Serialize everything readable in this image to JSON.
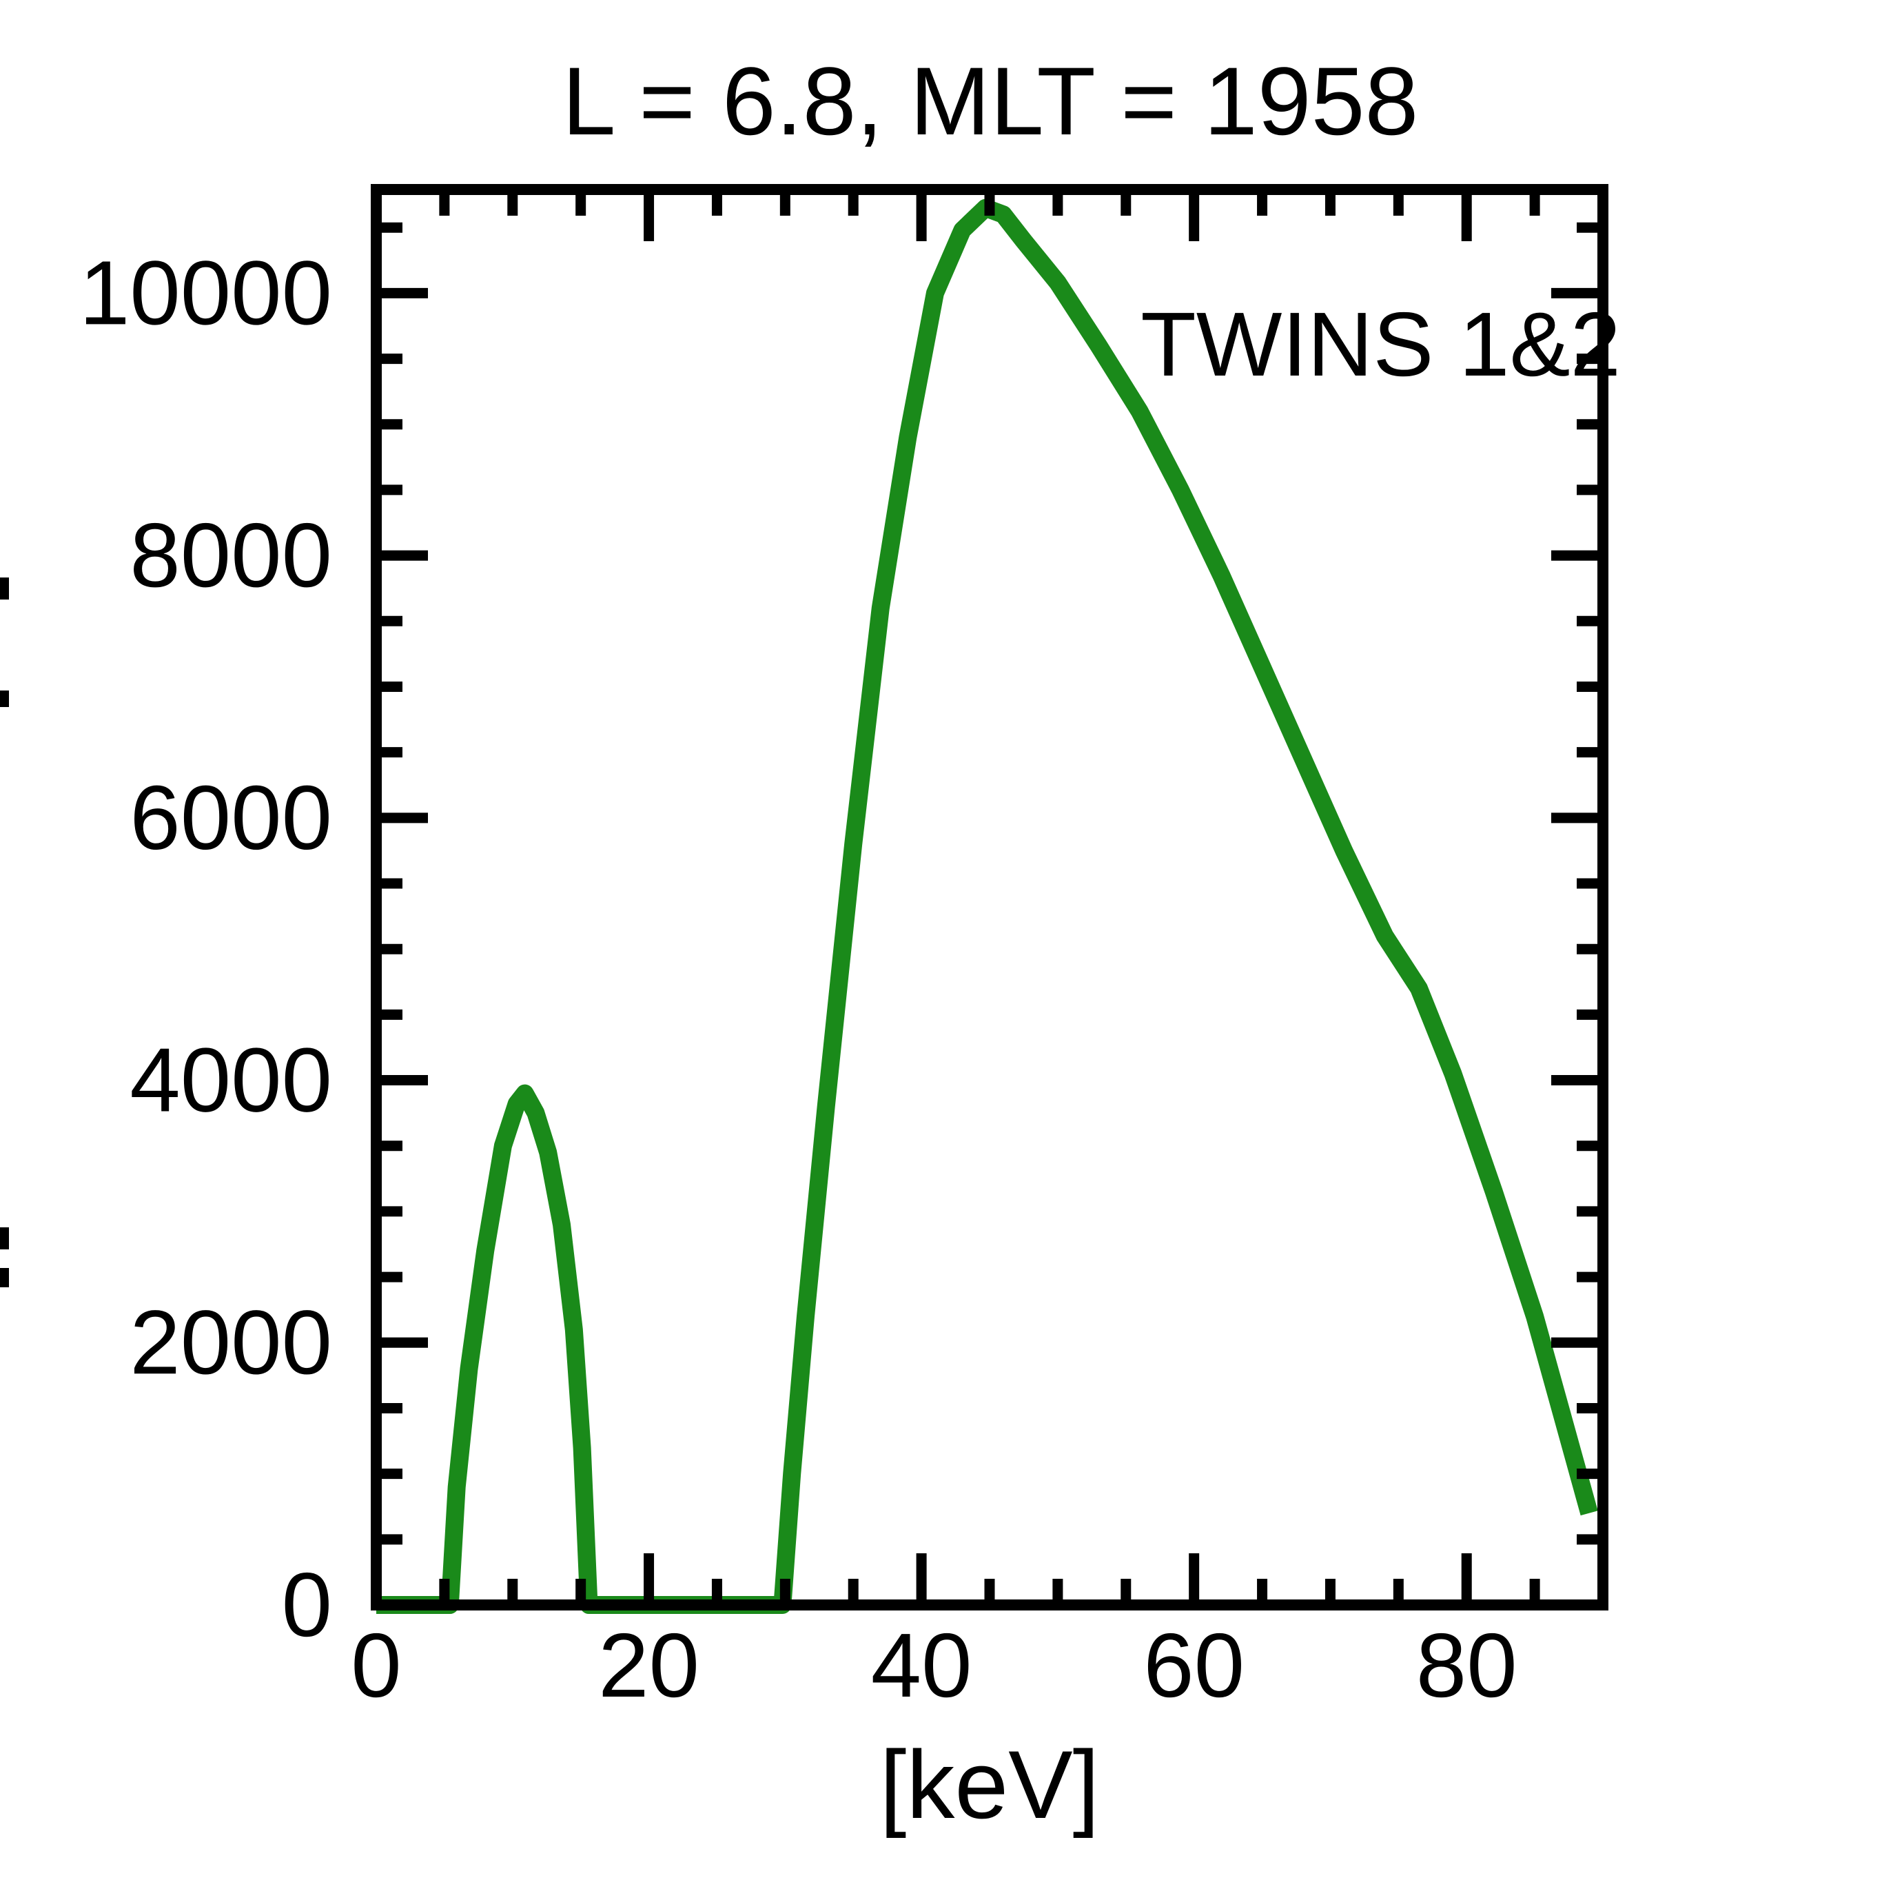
{
  "page": {
    "background": "#ffffff"
  },
  "chart_data": {
    "type": "line",
    "title": "L =  6.8, MLT = 1958",
    "xlabel": "[keV]",
    "ylabel": "",
    "ylabel_clipped": true,
    "xlim": [
      0,
      90
    ],
    "ylim": [
      0,
      10790
    ],
    "grid": false,
    "axis_color": "#000000",
    "x_tick_values": [
      0,
      20,
      40,
      60,
      80
    ],
    "x_tick_labels": [
      "0",
      "20",
      "40",
      "60",
      "80"
    ],
    "x_minor_step": 5,
    "y_tick_values": [
      0,
      2000,
      4000,
      6000,
      8000,
      10000
    ],
    "y_tick_labels": [
      "0",
      "2000",
      "4000",
      "6000",
      "8000",
      "10000"
    ],
    "y_minor_step": 500,
    "legend": {
      "text": "TWINS 1&2",
      "position": "upper-right-inside",
      "color": "#1a8a1a"
    },
    "ylabel_clip_marks": [
      [
        838,
        32
      ],
      [
        1002,
        24
      ],
      [
        1781,
        32
      ],
      [
        1840,
        28
      ]
    ],
    "series": [
      {
        "name": "TWINS 1&2",
        "color": "#1a8a1a",
        "line_width": 26,
        "x": [
          0,
          5.4,
          5.9,
          6.8,
          8.0,
          9.3,
          10.3,
          10.9,
          11.7,
          12.6,
          13.6,
          14.5,
          15.1,
          15.6,
          29.8,
          30.5,
          31.5,
          33,
          35,
          37,
          39,
          41,
          43,
          44.7,
          46,
          47.5,
          50,
          53,
          56,
          59,
          62,
          65,
          68,
          71,
          74,
          76.5,
          79,
          82,
          85,
          87,
          89
        ],
        "y": [
          0,
          0,
          900,
          1800,
          2700,
          3500,
          3820,
          3900,
          3750,
          3450,
          2900,
          2100,
          1200,
          0,
          0,
          1000,
          2200,
          3800,
          5800,
          7600,
          8900,
          10000,
          10480,
          10650,
          10600,
          10400,
          10080,
          9600,
          9100,
          8500,
          7850,
          7150,
          6450,
          5750,
          5100,
          4700,
          4050,
          3150,
          2200,
          1450,
          700
        ]
      }
    ]
  }
}
